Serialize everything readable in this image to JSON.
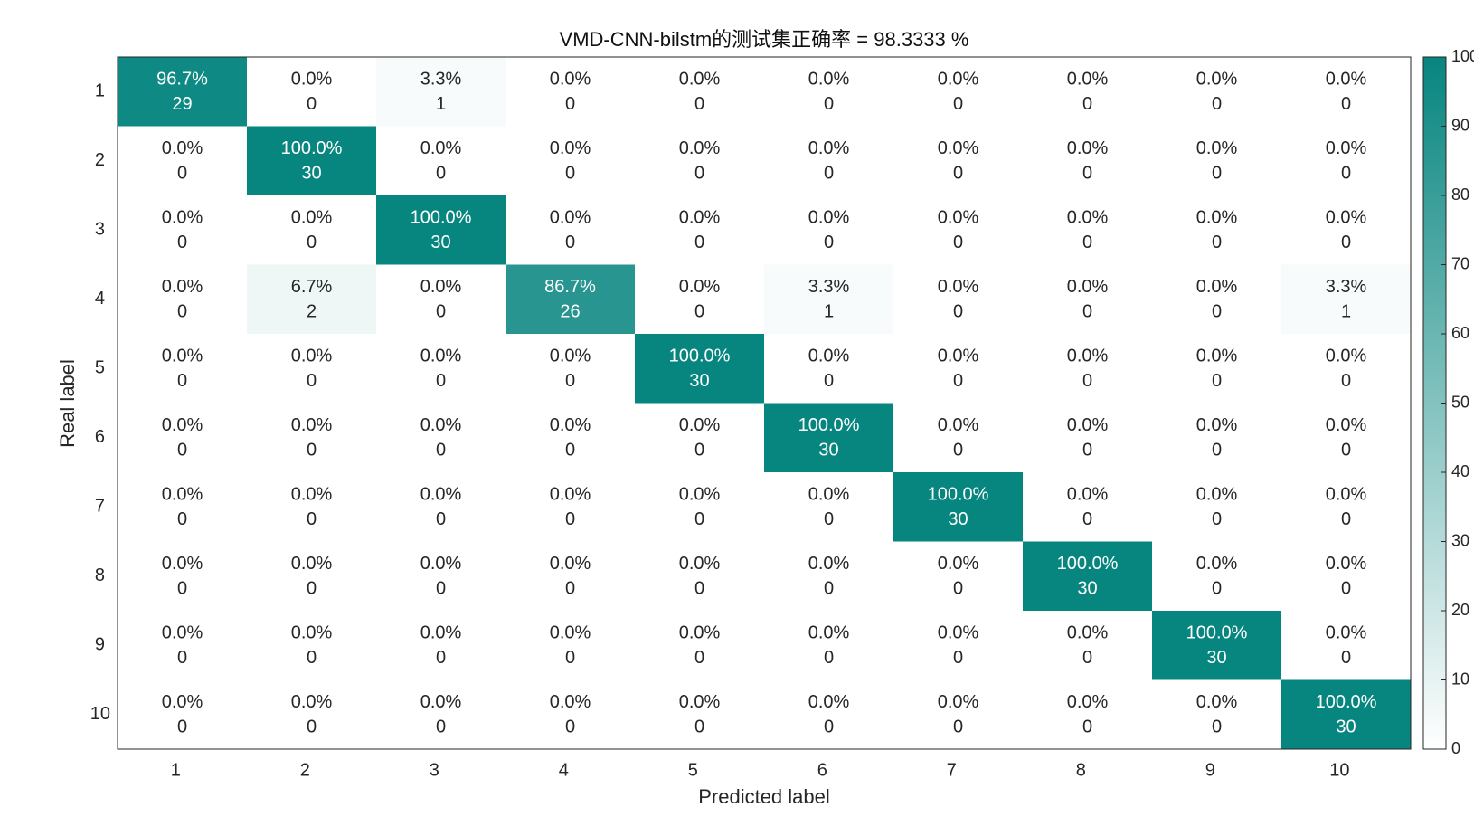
{
  "chart_data": {
    "type": "heatmap",
    "title": "VMD-CNN-bilstm的测试集正确率 = 98.3333 %",
    "xlabel": "Predicted label",
    "ylabel": "Real label",
    "x_categories": [
      "1",
      "2",
      "3",
      "4",
      "5",
      "6",
      "7",
      "8",
      "9",
      "10"
    ],
    "y_categories": [
      "1",
      "2",
      "3",
      "4",
      "5",
      "6",
      "7",
      "8",
      "9",
      "10"
    ],
    "values": [
      [
        96.7,
        0,
        3.3,
        0,
        0,
        0,
        0,
        0,
        0,
        0
      ],
      [
        0,
        100,
        0,
        0,
        0,
        0,
        0,
        0,
        0,
        0
      ],
      [
        0,
        0,
        100,
        0,
        0,
        0,
        0,
        0,
        0,
        0
      ],
      [
        0,
        6.7,
        0,
        86.7,
        0,
        3.3,
        0,
        0,
        0,
        3.3
      ],
      [
        0,
        0,
        0,
        0,
        100,
        0,
        0,
        0,
        0,
        0
      ],
      [
        0,
        0,
        0,
        0,
        0,
        100,
        0,
        0,
        0,
        0
      ],
      [
        0,
        0,
        0,
        0,
        0,
        0,
        100,
        0,
        0,
        0
      ],
      [
        0,
        0,
        0,
        0,
        0,
        0,
        0,
        100,
        0,
        0
      ],
      [
        0,
        0,
        0,
        0,
        0,
        0,
        0,
        0,
        100,
        0
      ],
      [
        0,
        0,
        0,
        0,
        0,
        0,
        0,
        0,
        0,
        100
      ]
    ],
    "value_labels": [
      [
        "96.7%",
        "0.0%",
        "3.3%",
        "0.0%",
        "0.0%",
        "0.0%",
        "0.0%",
        "0.0%",
        "0.0%",
        "0.0%"
      ],
      [
        "0.0%",
        "100.0%",
        "0.0%",
        "0.0%",
        "0.0%",
        "0.0%",
        "0.0%",
        "0.0%",
        "0.0%",
        "0.0%"
      ],
      [
        "0.0%",
        "0.0%",
        "100.0%",
        "0.0%",
        "0.0%",
        "0.0%",
        "0.0%",
        "0.0%",
        "0.0%",
        "0.0%"
      ],
      [
        "0.0%",
        "6.7%",
        "0.0%",
        "86.7%",
        "0.0%",
        "3.3%",
        "0.0%",
        "0.0%",
        "0.0%",
        "3.3%"
      ],
      [
        "0.0%",
        "0.0%",
        "0.0%",
        "0.0%",
        "100.0%",
        "0.0%",
        "0.0%",
        "0.0%",
        "0.0%",
        "0.0%"
      ],
      [
        "0.0%",
        "0.0%",
        "0.0%",
        "0.0%",
        "0.0%",
        "100.0%",
        "0.0%",
        "0.0%",
        "0.0%",
        "0.0%"
      ],
      [
        "0.0%",
        "0.0%",
        "0.0%",
        "0.0%",
        "0.0%",
        "0.0%",
        "100.0%",
        "0.0%",
        "0.0%",
        "0.0%"
      ],
      [
        "0.0%",
        "0.0%",
        "0.0%",
        "0.0%",
        "0.0%",
        "0.0%",
        "0.0%",
        "100.0%",
        "0.0%",
        "0.0%"
      ],
      [
        "0.0%",
        "0.0%",
        "0.0%",
        "0.0%",
        "0.0%",
        "0.0%",
        "0.0%",
        "0.0%",
        "100.0%",
        "0.0%"
      ],
      [
        "0.0%",
        "0.0%",
        "0.0%",
        "0.0%",
        "0.0%",
        "0.0%",
        "0.0%",
        "0.0%",
        "0.0%",
        "100.0%"
      ]
    ],
    "counts": [
      [
        29,
        0,
        1,
        0,
        0,
        0,
        0,
        0,
        0,
        0
      ],
      [
        0,
        30,
        0,
        0,
        0,
        0,
        0,
        0,
        0,
        0
      ],
      [
        0,
        0,
        30,
        0,
        0,
        0,
        0,
        0,
        0,
        0
      ],
      [
        0,
        2,
        0,
        26,
        0,
        1,
        0,
        0,
        0,
        1
      ],
      [
        0,
        0,
        0,
        0,
        30,
        0,
        0,
        0,
        0,
        0
      ],
      [
        0,
        0,
        0,
        0,
        0,
        30,
        0,
        0,
        0,
        0
      ],
      [
        0,
        0,
        0,
        0,
        0,
        0,
        30,
        0,
        0,
        0
      ],
      [
        0,
        0,
        0,
        0,
        0,
        0,
        0,
        30,
        0,
        0
      ],
      [
        0,
        0,
        0,
        0,
        0,
        0,
        0,
        0,
        30,
        0
      ],
      [
        0,
        0,
        0,
        0,
        0,
        0,
        0,
        0,
        0,
        30
      ]
    ],
    "color": "#07857f",
    "colorbar": {
      "ylim": [
        0,
        100
      ],
      "yticks": [
        0,
        10,
        20,
        30,
        40,
        50,
        60,
        70,
        80,
        90,
        100
      ]
    }
  }
}
